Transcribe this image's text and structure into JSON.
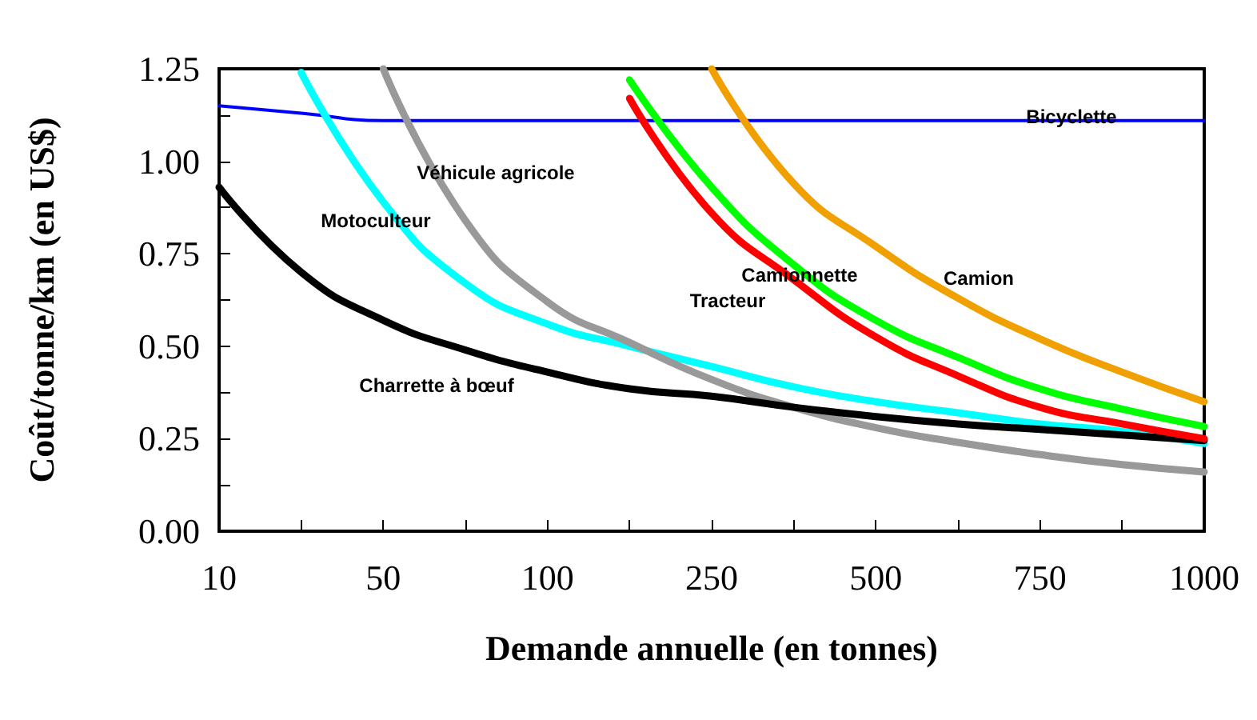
{
  "chart_data": {
    "type": "line",
    "xlabel": "Demande annuelle (en tonnes)",
    "ylabel": "Coût/tonne/km (en US$)",
    "categories": [
      "10",
      null,
      "50",
      null,
      "100",
      null,
      "250",
      null,
      "500",
      null,
      "750",
      null,
      "1000"
    ],
    "ylim": [
      0,
      1.25
    ],
    "yticks": [
      {
        "value": 0,
        "label": "0.00"
      },
      {
        "value": 0.125,
        "label": null
      },
      {
        "value": 0.25,
        "label": "0.25"
      },
      {
        "value": 0.375,
        "label": null
      },
      {
        "value": 0.5,
        "label": "0.50"
      },
      {
        "value": 0.625,
        "label": null
      },
      {
        "value": 0.75,
        "label": "0.75"
      },
      {
        "value": 0.875,
        "label": null
      },
      {
        "value": 1,
        "label": "1.00"
      },
      {
        "value": 1.125,
        "label": null
      },
      {
        "value": 1.25,
        "label": "1.25"
      }
    ],
    "grid": false,
    "legend": false,
    "marker": "none",
    "line_style": "solid",
    "series": [
      {
        "name": "Bicyclette",
        "color": "#0000ff",
        "values": [
          1.15,
          1.13,
          1.11,
          1.11,
          1.11,
          1.11,
          1.11,
          1.11,
          1.11,
          1.11,
          1.11,
          1.11,
          1.11
        ]
      },
      {
        "name": "Motoculteur",
        "color": "#00ffff",
        "values": [
          null,
          1.24,
          0.89,
          0.67,
          0.56,
          0.5,
          0.445,
          0.39,
          0.35,
          0.32,
          0.29,
          0.27,
          0.237
        ]
      },
      {
        "name": "Véhicule agricole",
        "color": "#999999",
        "values": [
          null,
          null,
          1.25,
          0.84,
          0.62,
          0.51,
          0.41,
          0.335,
          0.28,
          0.24,
          0.207,
          0.18,
          0.16
        ]
      },
      {
        "name": "Charrette à bœuf",
        "color": "#000000",
        "values": [
          0.93,
          0.7,
          0.57,
          0.49,
          0.43,
          0.385,
          0.365,
          0.335,
          0.31,
          0.29,
          0.275,
          0.26,
          0.245
        ]
      },
      {
        "name": "Tracteur",
        "color": "#ff0000",
        "values": [
          null,
          null,
          null,
          null,
          null,
          1.17,
          0.86,
          0.68,
          0.525,
          0.42,
          0.335,
          0.29,
          0.25
        ]
      },
      {
        "name": "Camionnette",
        "color": "#00ff00",
        "values": [
          null,
          null,
          null,
          null,
          null,
          1.22,
          0.93,
          0.72,
          0.57,
          0.47,
          0.385,
          0.33,
          0.283
        ]
      },
      {
        "name": "Camion",
        "color": "#f0a000",
        "values": [
          null,
          null,
          null,
          null,
          null,
          null,
          1.25,
          0.94,
          0.77,
          0.63,
          0.52,
          0.43,
          0.35
        ]
      }
    ]
  }
}
